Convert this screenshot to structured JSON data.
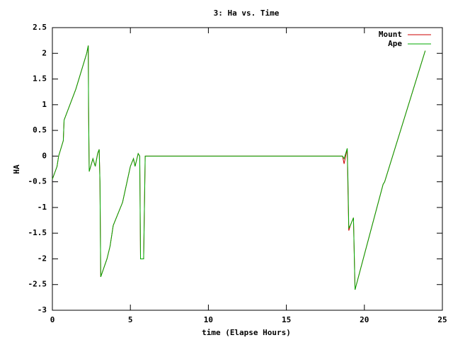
{
  "chart_data": {
    "type": "line",
    "title": "3: Ha vs. Time",
    "x_label": "time (Elapse Hours)",
    "y_label": "HA",
    "x": [
      0,
      0.3,
      0.4,
      0.7,
      0.75,
      1.5,
      2.2,
      2.3,
      2.32,
      2.36,
      2.6,
      2.75,
      2.9,
      3.0,
      3.05,
      3.1,
      3.5,
      3.7,
      3.9,
      4.5,
      5.0,
      5.2,
      5.3,
      5.5,
      5.6,
      5.65,
      5.85,
      5.95,
      18.6,
      18.7,
      18.9,
      18.95,
      19.0,
      19.1,
      19.3,
      19.4,
      21.2,
      21.3,
      23.9
    ],
    "series": [
      {
        "name": "Mount",
        "color": "#cc0000",
        "values": [
          -0.45,
          -0.2,
          0,
          0.3,
          0.7,
          1.3,
          2.0,
          2.15,
          0.95,
          -0.3,
          -0.05,
          -0.2,
          0.05,
          0.13,
          -0.5,
          -2.35,
          -2.0,
          -1.75,
          -1.35,
          -0.9,
          -0.2,
          -0.05,
          -0.2,
          0.05,
          0,
          -2.0,
          -2.0,
          0,
          0,
          -0.15,
          0.15,
          -0.7,
          -1.45,
          -1.35,
          -1.2,
          -2.6,
          -0.55,
          -0.5,
          2.05
        ]
      },
      {
        "name": "Ape",
        "color": "#00aa00",
        "values": [
          -0.45,
          -0.2,
          0,
          0.3,
          0.7,
          1.3,
          2.0,
          2.15,
          0.95,
          -0.3,
          -0.05,
          -0.2,
          0.05,
          0.13,
          -0.5,
          -2.35,
          -2.0,
          -1.75,
          -1.35,
          -0.9,
          -0.2,
          -0.05,
          -0.2,
          0.05,
          0,
          -2.0,
          -2.0,
          0,
          0,
          -0.05,
          0.15,
          -0.5,
          -1.4,
          -1.35,
          -1.2,
          -2.6,
          -0.55,
          -0.5,
          2.05
        ]
      }
    ],
    "xlim": [
      0,
      25
    ],
    "xticks": [
      0,
      5,
      10,
      15,
      20,
      25
    ],
    "ylim": [
      -3,
      2.5
    ],
    "yticks": [
      -3,
      -2.5,
      -2,
      -1.5,
      -1,
      -0.5,
      0,
      0.5,
      1,
      1.5,
      2,
      2.5
    ],
    "legend": "top-right",
    "grid": false
  }
}
